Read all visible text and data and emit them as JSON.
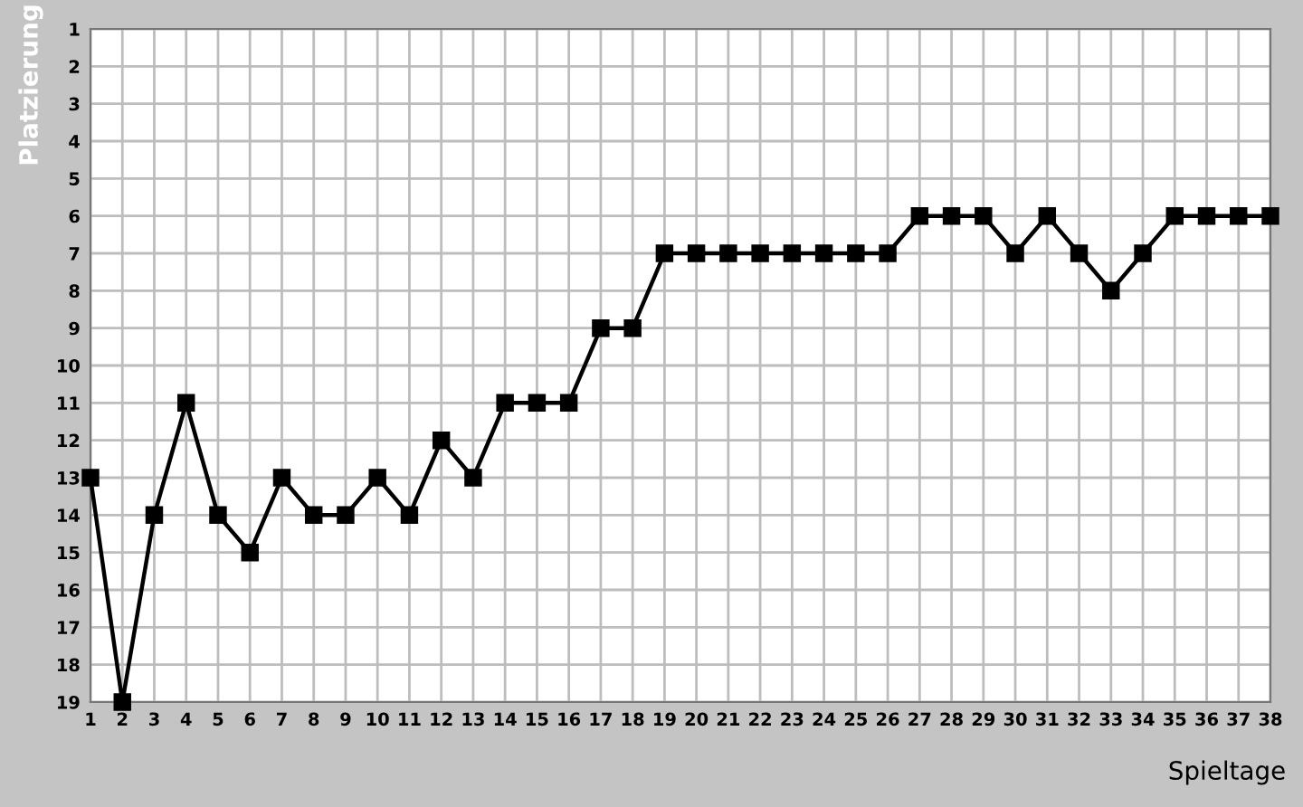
{
  "chart_data": {
    "type": "line",
    "xlabel": "Spieltage",
    "ylabel": "Platzierung",
    "x": [
      1,
      2,
      3,
      4,
      5,
      6,
      7,
      8,
      9,
      10,
      11,
      12,
      13,
      14,
      15,
      16,
      17,
      18,
      19,
      20,
      21,
      22,
      23,
      24,
      25,
      26,
      27,
      28,
      29,
      30,
      31,
      32,
      33,
      34,
      35,
      36,
      37,
      38
    ],
    "series": [
      {
        "color": "#000000",
        "values": [
          13,
          19,
          14,
          11,
          14,
          15,
          13,
          14,
          14,
          13,
          14,
          12,
          13,
          11,
          11,
          11,
          9,
          9,
          7,
          7,
          7,
          7,
          7,
          7,
          7,
          7,
          6,
          6,
          6,
          7,
          6,
          7,
          8,
          7,
          6,
          6,
          6,
          6
        ]
      }
    ],
    "xlim": [
      1,
      38
    ],
    "xticks": [
      1,
      2,
      3,
      4,
      5,
      6,
      7,
      8,
      9,
      10,
      11,
      12,
      13,
      14,
      15,
      16,
      17,
      18,
      19,
      20,
      21,
      22,
      23,
      24,
      25,
      26,
      27,
      28,
      29,
      30,
      31,
      32,
      33,
      34,
      35,
      36,
      37,
      38
    ],
    "ylim": [
      19,
      1
    ],
    "yticks": [
      1,
      2,
      3,
      4,
      5,
      6,
      7,
      8,
      9,
      10,
      11,
      12,
      13,
      14,
      15,
      16,
      17,
      18,
      19
    ],
    "grid": true,
    "marker": "square",
    "line_style": "solid"
  }
}
